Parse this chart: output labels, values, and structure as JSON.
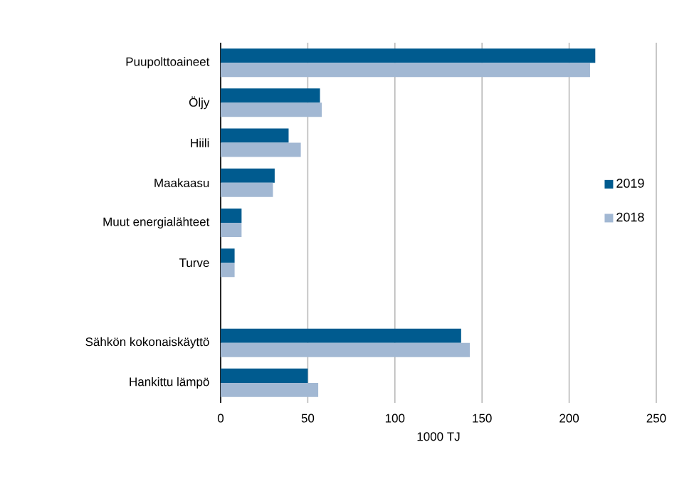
{
  "chart_data": {
    "type": "bar",
    "orientation": "horizontal",
    "xlabel": "1000 TJ",
    "categories": [
      "Puupolttoaineet",
      "Öljy",
      "Hiili",
      "Maakaasu",
      "Muut energialähteet",
      "Turve",
      null,
      "Sähkön kokonaiskäyttö",
      "Hankittu lämpö"
    ],
    "series": [
      {
        "name": "2019",
        "color": "#005b8f",
        "values": [
          215,
          57,
          39,
          31,
          12,
          8,
          null,
          138,
          50
        ]
      },
      {
        "name": "2018",
        "color": "#a2b8d3",
        "values": [
          212,
          58,
          46,
          30,
          12,
          8,
          null,
          143,
          56
        ]
      }
    ],
    "xlim": [
      0,
      250
    ],
    "xticks": [
      0,
      50,
      100,
      150,
      200,
      250
    ],
    "grid": "x",
    "legend": "right"
  }
}
